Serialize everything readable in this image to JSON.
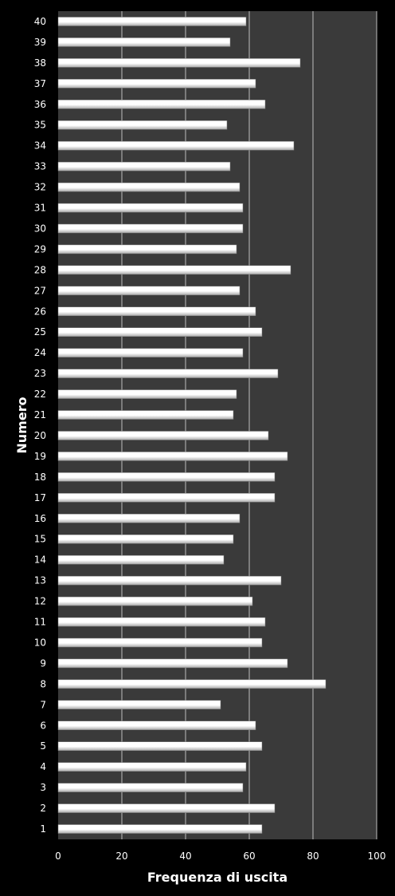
{
  "chart_data": {
    "type": "bar",
    "orientation": "horizontal",
    "xlabel": "Frequenza di uscita",
    "ylabel": "Numero",
    "xlim": [
      0,
      100
    ],
    "xticks": [
      0,
      20,
      40,
      60,
      80,
      100
    ],
    "grid": true,
    "legend": "none",
    "categories": [
      "1",
      "2",
      "3",
      "4",
      "5",
      "6",
      "7",
      "8",
      "9",
      "10",
      "11",
      "12",
      "13",
      "14",
      "15",
      "16",
      "17",
      "18",
      "19",
      "20",
      "21",
      "22",
      "23",
      "24",
      "25",
      "26",
      "27",
      "28",
      "29",
      "30",
      "31",
      "32",
      "33",
      "34",
      "35",
      "36",
      "37",
      "38",
      "39",
      "40"
    ],
    "values": [
      64,
      68,
      58,
      59,
      64,
      62,
      51,
      84,
      72,
      64,
      65,
      61,
      70,
      52,
      55,
      57,
      68,
      68,
      72,
      66,
      55,
      56,
      69,
      58,
      64,
      62,
      57,
      73,
      56,
      58,
      58,
      57,
      54,
      74,
      53,
      65,
      62,
      76,
      54,
      59
    ],
    "colors": {
      "page": "#000000",
      "plot_area": "#3a3a3a",
      "gridline": "#bdbdbd",
      "bar_light": "#ffffff",
      "bar_dark": "#a8a8a8",
      "text": "#ffffff"
    }
  }
}
